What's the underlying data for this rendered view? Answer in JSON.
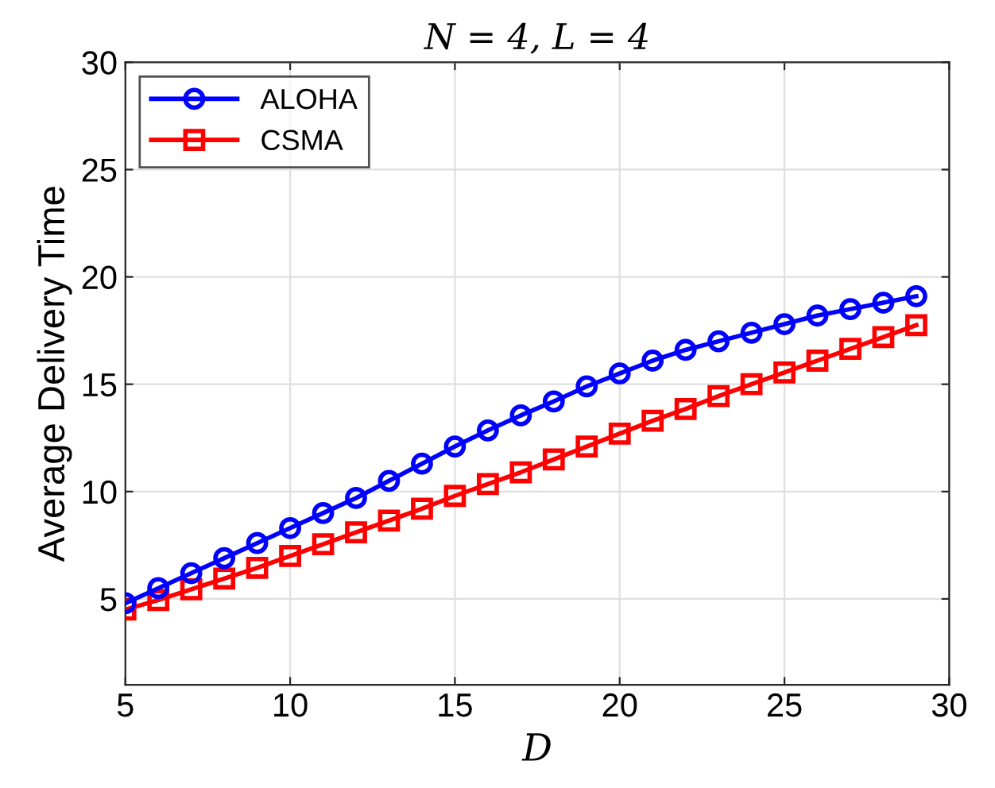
{
  "chart_data": {
    "type": "line",
    "title": "N = 4, L = 4",
    "xlabel": "D",
    "ylabel": "Average Delivery Time",
    "x": [
      5,
      6,
      7,
      8,
      9,
      10,
      11,
      12,
      13,
      14,
      15,
      16,
      17,
      18,
      19,
      20,
      21,
      22,
      23,
      24,
      25,
      26,
      27,
      28,
      29
    ],
    "series": [
      {
        "name": "ALOHA",
        "color": "#0000ff",
        "marker": "circle",
        "values": [
          4.8,
          5.5,
          6.2,
          6.9,
          7.6,
          8.3,
          9.0,
          9.7,
          10.5,
          11.3,
          12.1,
          12.85,
          13.55,
          14.2,
          14.9,
          15.5,
          16.1,
          16.6,
          17.0,
          17.4,
          17.8,
          18.2,
          18.5,
          18.8,
          19.1
        ]
      },
      {
        "name": "CSMA",
        "color": "#ff0000",
        "marker": "square",
        "values": [
          4.5,
          4.95,
          5.45,
          5.95,
          6.45,
          7.0,
          7.55,
          8.1,
          8.65,
          9.2,
          9.8,
          10.35,
          10.9,
          11.5,
          12.1,
          12.7,
          13.3,
          13.85,
          14.45,
          15.0,
          15.55,
          16.1,
          16.65,
          17.2,
          17.75
        ]
      }
    ],
    "xlim": [
      5,
      30
    ],
    "xticks": [
      5,
      10,
      15,
      20,
      25,
      30
    ],
    "ylim": [
      1,
      30
    ],
    "yticks": [
      5,
      10,
      15,
      20,
      25,
      30
    ],
    "grid": true,
    "legend": "top left",
    "line_style": "solid"
  }
}
